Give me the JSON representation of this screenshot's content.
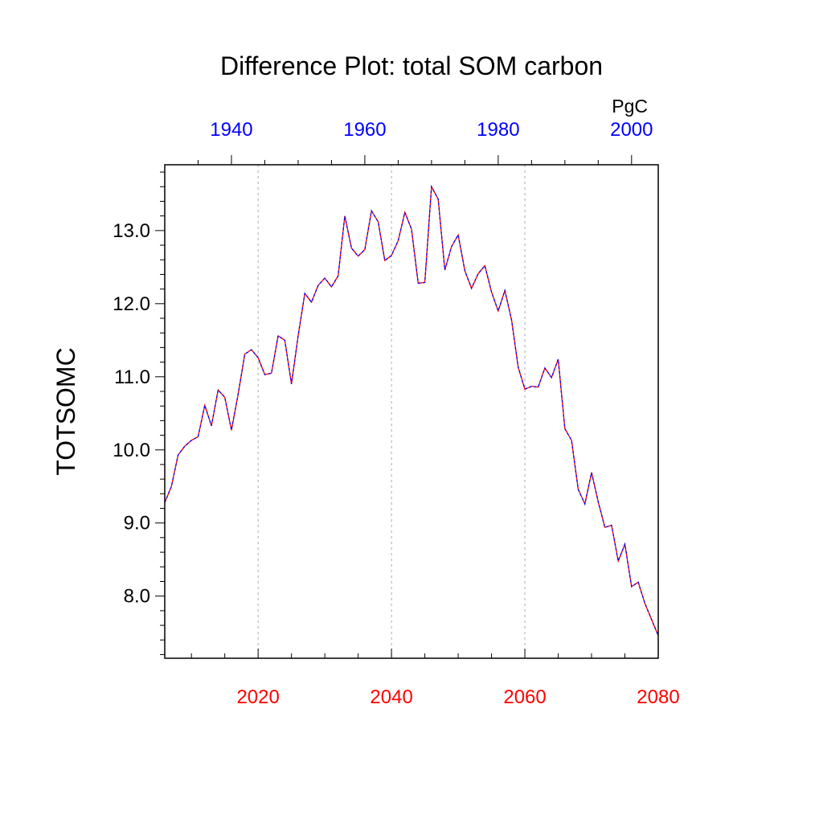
{
  "chart_data": {
    "type": "line",
    "title": "Difference Plot: total SOM carbon",
    "units": "PgC",
    "ylabel": "TOTSOMC",
    "xlabel": "",
    "x": [
      2006,
      2007,
      2008,
      2009,
      2010,
      2011,
      2012,
      2013,
      2014,
      2015,
      2016,
      2017,
      2018,
      2019,
      2020,
      2021,
      2022,
      2023,
      2024,
      2025,
      2026,
      2027,
      2028,
      2029,
      2030,
      2031,
      2032,
      2033,
      2034,
      2035,
      2036,
      2037,
      2038,
      2039,
      2040,
      2041,
      2042,
      2043,
      2044,
      2045,
      2046,
      2047,
      2048,
      2049,
      2050,
      2051,
      2052,
      2053,
      2054,
      2055,
      2056,
      2057,
      2058,
      2059,
      2060,
      2061,
      2062,
      2063,
      2064,
      2065,
      2066,
      2067,
      2068,
      2069,
      2070,
      2071,
      2072,
      2073,
      2074,
      2075,
      2076,
      2077,
      2078,
      2079,
      2080
    ],
    "top_x_labels": [
      "1940",
      "1960",
      "1980",
      "2000"
    ],
    "bottom_x_labels": [
      "2020",
      "2040",
      "2060",
      "2080"
    ],
    "y_tick_labels": [
      "8.0",
      "9.0",
      "10.0",
      "11.0",
      "12.0",
      "13.0"
    ],
    "xlim_bottom": [
      2006,
      2080
    ],
    "xlim_top": [
      1930,
      2004
    ],
    "ylim": [
      7.15,
      13.9
    ],
    "grid": "vertical dashed at major bottom ticks",
    "series": [
      {
        "color_primary": "#ff0000",
        "color_secondary": "#0000ff",
        "values": [
          9.28,
          9.5,
          9.93,
          10.05,
          10.13,
          10.18,
          10.61,
          10.33,
          10.82,
          10.72,
          10.27,
          10.76,
          11.31,
          11.37,
          11.26,
          11.03,
          11.05,
          11.56,
          11.5,
          10.9,
          11.56,
          12.14,
          12.02,
          12.25,
          12.35,
          12.23,
          12.38,
          13.2,
          12.76,
          12.65,
          12.74,
          13.27,
          13.12,
          12.59,
          12.66,
          12.86,
          13.25,
          13.02,
          12.28,
          12.29,
          13.6,
          13.43,
          12.46,
          12.78,
          12.94,
          12.45,
          12.21,
          12.41,
          12.52,
          12.16,
          11.9,
          12.18,
          11.78,
          11.13,
          10.83,
          10.87,
          10.86,
          11.12,
          10.99,
          11.24,
          10.29,
          10.13,
          9.46,
          9.26,
          9.69,
          9.29,
          8.94,
          8.97,
          8.48,
          8.71,
          8.13,
          8.19,
          7.9,
          7.68,
          7.46
        ]
      }
    ],
    "colors": {
      "top_axis_labels": "#0000ff",
      "bottom_axis_labels": "#ff0000",
      "grid": "#aaaaaa"
    }
  }
}
